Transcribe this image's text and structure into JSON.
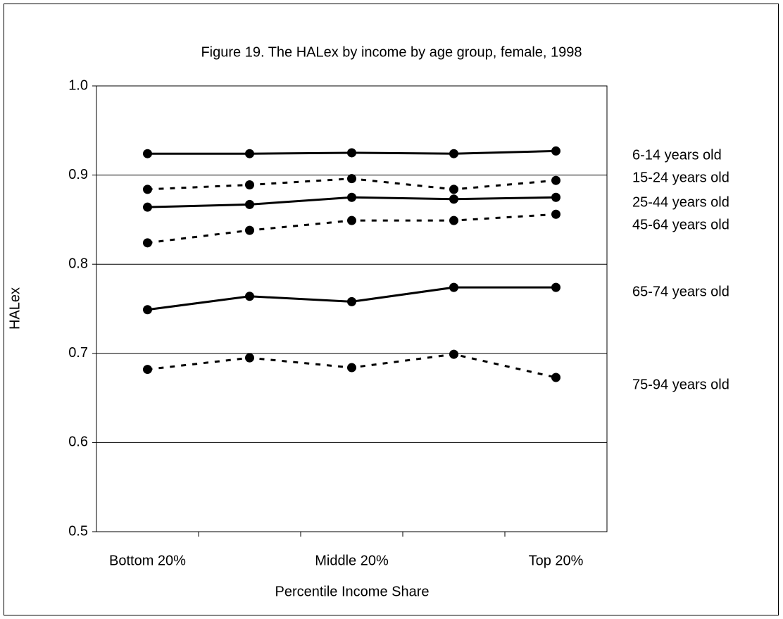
{
  "chart_data": {
    "type": "line",
    "title": "Figure 19. The HALex by income by age group, female, 1998",
    "x_label": "Percentile Income Share",
    "y_label": "HALex",
    "categories": [
      "Bottom 20%",
      null,
      "Middle 20%",
      null,
      "Top 20%"
    ],
    "ylim": [
      0.5,
      1.0
    ],
    "yticks": [
      {
        "value": 0.5,
        "label": "0.5"
      },
      {
        "value": 0.6,
        "label": "0.6"
      },
      {
        "value": 0.7,
        "label": "0.7"
      },
      {
        "value": 0.8,
        "label": "0.8"
      },
      {
        "value": 0.9,
        "label": "0.9"
      },
      {
        "value": 1.0,
        "label": "1.0"
      }
    ],
    "grid": true,
    "series": [
      {
        "name": "6-14 years old",
        "color": "#000000",
        "dashed": false,
        "values": [
          0.924,
          0.924,
          0.925,
          0.924,
          0.927
        ]
      },
      {
        "name": "15-24 years old",
        "color": "#000000",
        "dashed": true,
        "values": [
          0.884,
          0.889,
          0.896,
          0.884,
          0.894
        ]
      },
      {
        "name": "25-44 years old",
        "color": "#000000",
        "dashed": false,
        "values": [
          0.864,
          0.867,
          0.875,
          0.873,
          0.875
        ]
      },
      {
        "name": "45-64 years old",
        "color": "#000000",
        "dashed": true,
        "values": [
          0.824,
          0.838,
          0.849,
          0.849,
          0.856
        ]
      },
      {
        "name": "65-74 years old",
        "color": "#000000",
        "dashed": false,
        "values": [
          0.749,
          0.764,
          0.758,
          0.774,
          0.774
        ]
      },
      {
        "name": "75-94 years old",
        "color": "#000000",
        "dashed": true,
        "values": [
          0.682,
          0.695,
          0.684,
          0.699,
          0.673
        ]
      }
    ]
  }
}
